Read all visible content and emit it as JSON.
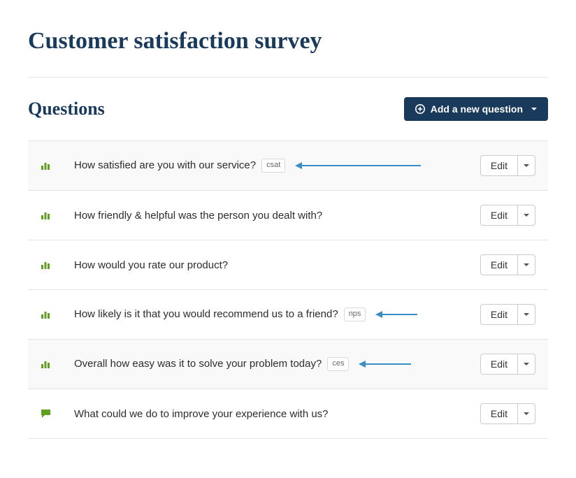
{
  "page": {
    "title": "Customer satisfaction survey"
  },
  "section": {
    "title": "Questions",
    "add_button_label": "Add a new question"
  },
  "colors": {
    "heading": "#1a3a5c",
    "primary_button": "#1a3a5c",
    "icon_green": "#5fa020",
    "arrow_blue": "#3a8ec5",
    "row_shaded": "#f9f9f9",
    "border": "#e5e5e5"
  },
  "edit_label": "Edit",
  "questions": [
    {
      "text": "How satisfied are you with our service?",
      "tag": "csat",
      "icon": "bar-chart",
      "shaded": true,
      "arrow": true,
      "arrow_width": 170
    },
    {
      "text": "How friendly & helpful was the person you dealt with?",
      "tag": null,
      "icon": "bar-chart",
      "shaded": false,
      "arrow": false
    },
    {
      "text": "How would you rate our product?",
      "tag": null,
      "icon": "bar-chart",
      "shaded": false,
      "arrow": false
    },
    {
      "text": "How likely is it that you would recommend us to a friend?",
      "tag": "nps",
      "icon": "bar-chart",
      "shaded": false,
      "arrow": true,
      "arrow_width": 50
    },
    {
      "text": "Overall how easy was it to solve your problem today?",
      "tag": "ces",
      "icon": "bar-chart",
      "shaded": true,
      "arrow": true,
      "arrow_width": 65
    },
    {
      "text": "What could we do to improve your experience with us?",
      "tag": null,
      "icon": "comment",
      "shaded": false,
      "arrow": false
    }
  ]
}
